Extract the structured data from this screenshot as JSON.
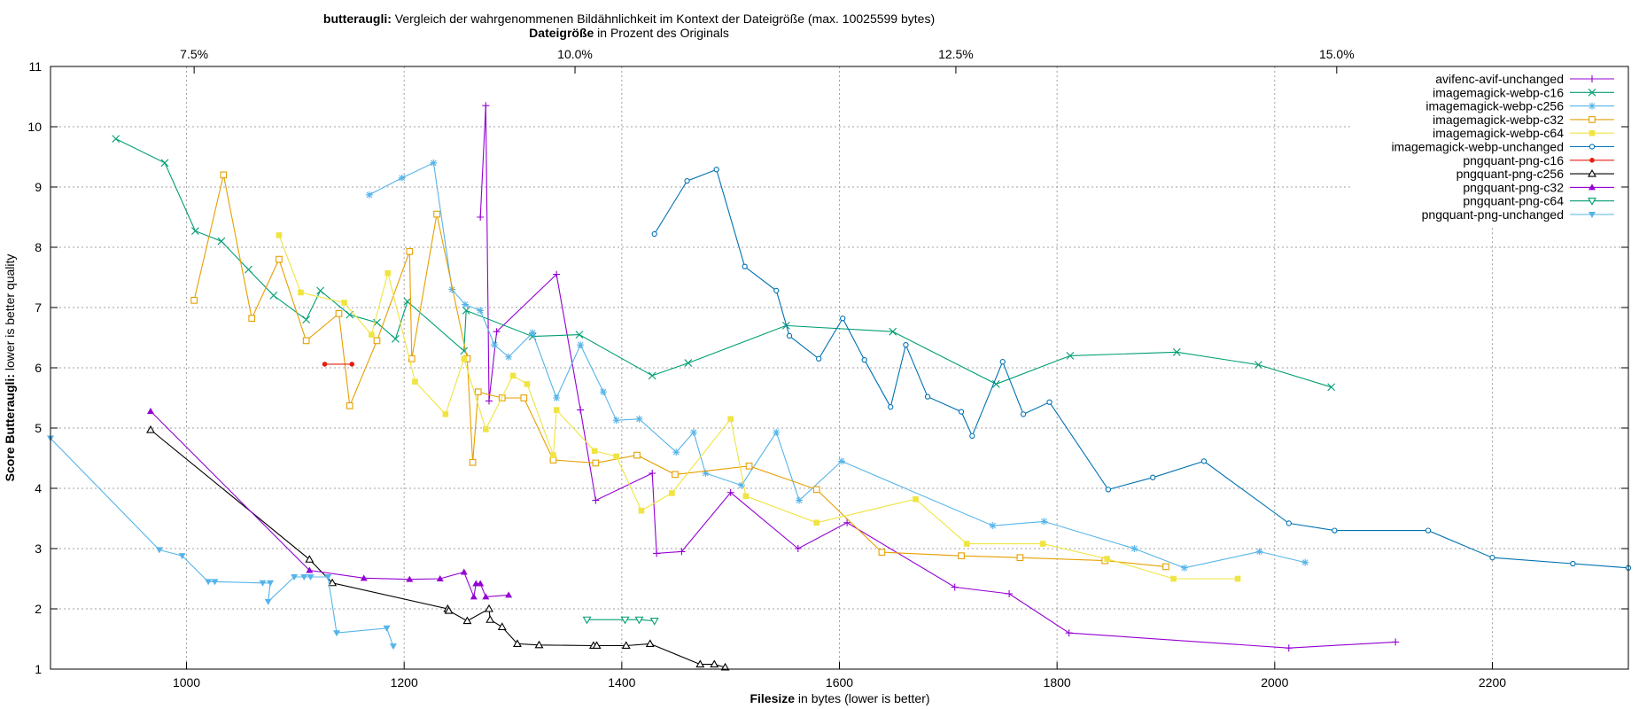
{
  "chart_data": {
    "type": "line",
    "title": {
      "bold": "butteraugli:",
      "rest": " Vergleich der wahrgenommenen Bildähnlichkeit im Kontext der Dateigröße (max. 10025599 bytes)"
    },
    "top_axis_title": {
      "bold": "Dateigröße",
      "rest": " in Prozent des Originals"
    },
    "xlabel": {
      "bold": "Filesize",
      "rest": " in bytes (lower is better)"
    },
    "ylabel": {
      "bold": "Score Butteraugli:",
      "rest": " lower is better quality"
    },
    "xlim": [
      875,
      2325
    ],
    "ylim": [
      1,
      11
    ],
    "x_ticks": [
      1000,
      1200,
      1400,
      1600,
      1800,
      2000,
      2200
    ],
    "y_ticks": [
      1,
      2,
      3,
      4,
      5,
      6,
      7,
      8,
      9,
      10,
      11
    ],
    "top_ticks": [
      {
        "x": 1007,
        "label": "7.5%"
      },
      {
        "x": 1357,
        "label": "10.0%"
      },
      {
        "x": 1707,
        "label": "12.5%"
      },
      {
        "x": 2057,
        "label": "15.0%"
      }
    ],
    "grid": true,
    "legend_position": "top-right",
    "series": [
      {
        "name": "avifenc-avif-unchanged",
        "color": "#9400d3",
        "marker": "plus",
        "points": [
          [
            1270,
            8.5
          ],
          [
            1275,
            10.35
          ],
          [
            1278,
            5.45
          ],
          [
            1285,
            6.6
          ],
          [
            1340,
            7.55
          ],
          [
            1362,
            5.3
          ],
          [
            1376,
            3.8
          ],
          [
            1428,
            4.25
          ],
          [
            1432,
            2.92
          ],
          [
            1455,
            2.95
          ],
          [
            1500,
            3.93
          ],
          [
            1562,
            3.0
          ],
          [
            1607,
            3.43
          ],
          [
            1706,
            2.36
          ],
          [
            1756,
            2.25
          ],
          [
            1811,
            1.6
          ],
          [
            2013,
            1.35
          ],
          [
            2111,
            1.45
          ]
        ]
      },
      {
        "name": "imagemagick-webp-c16",
        "color": "#009e73",
        "marker": "x",
        "points": [
          [
            935,
            9.8
          ],
          [
            980,
            9.4
          ],
          [
            1008,
            8.27
          ],
          [
            1032,
            8.1
          ],
          [
            1057,
            7.63
          ],
          [
            1080,
            7.2
          ],
          [
            1110,
            6.8
          ],
          [
            1123,
            7.28
          ],
          [
            1150,
            6.88
          ],
          [
            1175,
            6.75
          ],
          [
            1192,
            6.48
          ],
          [
            1203,
            7.1
          ],
          [
            1255,
            6.28
          ],
          [
            1257,
            6.95
          ],
          [
            1318,
            6.52
          ],
          [
            1361,
            6.55
          ],
          [
            1428,
            5.87
          ],
          [
            1461,
            6.08
          ],
          [
            1551,
            6.7
          ],
          [
            1649,
            6.6
          ],
          [
            1744,
            5.73
          ],
          [
            1812,
            6.2
          ],
          [
            1910,
            6.26
          ],
          [
            1985,
            6.05
          ],
          [
            2052,
            5.68
          ]
        ]
      },
      {
        "name": "imagemagick-webp-c256",
        "color": "#56b4e9",
        "marker": "star",
        "points": [
          [
            1168,
            8.87
          ],
          [
            1198,
            9.15
          ],
          [
            1227,
            9.4
          ],
          [
            1244,
            7.3
          ],
          [
            1256,
            7.05
          ],
          [
            1270,
            6.95
          ],
          [
            1283,
            6.38
          ],
          [
            1296,
            6.18
          ],
          [
            1318,
            6.58
          ],
          [
            1340,
            5.5
          ],
          [
            1362,
            6.38
          ],
          [
            1383,
            5.6
          ],
          [
            1395,
            5.13
          ],
          [
            1416,
            5.15
          ],
          [
            1450,
            4.6
          ],
          [
            1466,
            4.93
          ],
          [
            1477,
            4.25
          ],
          [
            1510,
            4.05
          ],
          [
            1542,
            4.93
          ],
          [
            1563,
            3.8
          ],
          [
            1602,
            4.45
          ],
          [
            1741,
            3.38
          ],
          [
            1788,
            3.45
          ],
          [
            1871,
            3.0
          ],
          [
            1917,
            2.68
          ],
          [
            1986,
            2.95
          ],
          [
            2028,
            2.77
          ]
        ]
      },
      {
        "name": "imagemagick-webp-c32",
        "color": "#e69f00",
        "marker": "square-open",
        "points": [
          [
            1007,
            7.12
          ],
          [
            1034,
            9.2
          ],
          [
            1060,
            6.82
          ],
          [
            1085,
            7.8
          ],
          [
            1110,
            6.45
          ],
          [
            1140,
            6.9
          ],
          [
            1150,
            5.37
          ],
          [
            1175,
            6.45
          ],
          [
            1205,
            7.93
          ],
          [
            1207,
            6.15
          ],
          [
            1230,
            8.55
          ],
          [
            1258,
            6.15
          ],
          [
            1263,
            4.43
          ],
          [
            1268,
            5.6
          ],
          [
            1290,
            5.5
          ],
          [
            1310,
            5.5
          ],
          [
            1337,
            4.47
          ],
          [
            1376,
            4.42
          ],
          [
            1414,
            4.55
          ],
          [
            1449,
            4.23
          ],
          [
            1517,
            4.37
          ],
          [
            1579,
            3.98
          ],
          [
            1639,
            2.94
          ],
          [
            1712,
            2.88
          ],
          [
            1766,
            2.85
          ],
          [
            1844,
            2.8
          ],
          [
            1900,
            2.7
          ]
        ]
      },
      {
        "name": "imagemagick-webp-c64",
        "color": "#f0e442",
        "marker": "square-solid",
        "points": [
          [
            1085,
            8.2
          ],
          [
            1105,
            7.25
          ],
          [
            1145,
            7.08
          ],
          [
            1170,
            6.55
          ],
          [
            1185,
            7.57
          ],
          [
            1210,
            5.77
          ],
          [
            1238,
            5.23
          ],
          [
            1255,
            6.15
          ],
          [
            1275,
            4.98
          ],
          [
            1300,
            5.87
          ],
          [
            1313,
            5.73
          ],
          [
            1337,
            4.55
          ],
          [
            1340,
            5.3
          ],
          [
            1375,
            4.62
          ],
          [
            1395,
            4.53
          ],
          [
            1418,
            3.63
          ],
          [
            1446,
            3.92
          ],
          [
            1500,
            5.15
          ],
          [
            1514,
            3.87
          ],
          [
            1579,
            3.43
          ],
          [
            1670,
            3.82
          ],
          [
            1717,
            3.08
          ],
          [
            1787,
            3.08
          ],
          [
            1846,
            2.83
          ],
          [
            1907,
            2.5
          ],
          [
            1966,
            2.5
          ]
        ]
      },
      {
        "name": "imagemagick-webp-unchanged",
        "color": "#0072b2",
        "marker": "circle",
        "points": [
          [
            1430,
            8.22
          ],
          [
            1460,
            9.1
          ],
          [
            1487,
            9.29
          ],
          [
            1513,
            7.68
          ],
          [
            1542,
            7.28
          ],
          [
            1554,
            6.53
          ],
          [
            1581,
            6.15
          ],
          [
            1603,
            6.82
          ],
          [
            1623,
            6.13
          ],
          [
            1647,
            5.35
          ],
          [
            1661,
            6.38
          ],
          [
            1681,
            5.52
          ],
          [
            1712,
            5.27
          ],
          [
            1722,
            4.87
          ],
          [
            1750,
            6.1
          ],
          [
            1769,
            5.23
          ],
          [
            1793,
            5.43
          ],
          [
            1847,
            3.98
          ],
          [
            1888,
            4.18
          ],
          [
            1935,
            4.45
          ],
          [
            2013,
            3.42
          ],
          [
            2055,
            3.3
          ],
          [
            2141,
            3.3
          ],
          [
            2200,
            2.85
          ],
          [
            2274,
            2.75
          ],
          [
            2325,
            2.68
          ]
        ]
      },
      {
        "name": "pngquant-png-c16",
        "color": "#e51e10",
        "marker": "circle-solid",
        "points": [
          [
            1127,
            6.06
          ],
          [
            1152,
            6.06
          ]
        ]
      },
      {
        "name": "pngquant-png-c256",
        "color": "#000000",
        "marker": "triangle-open",
        "points": [
          [
            967,
            4.97
          ],
          [
            1113,
            2.82
          ],
          [
            1134,
            2.43
          ],
          [
            1240,
            2.0
          ],
          [
            1241,
            1.97
          ],
          [
            1258,
            1.8
          ],
          [
            1278,
            2.0
          ],
          [
            1279,
            1.82
          ],
          [
            1290,
            1.7
          ],
          [
            1304,
            1.42
          ],
          [
            1324,
            1.4
          ],
          [
            1374,
            1.39
          ],
          [
            1377,
            1.39
          ],
          [
            1404,
            1.39
          ],
          [
            1426,
            1.42
          ],
          [
            1472,
            1.08
          ],
          [
            1485,
            1.08
          ],
          [
            1495,
            1.03
          ]
        ]
      },
      {
        "name": "pngquant-png-c32",
        "color": "#9400d3",
        "marker": "triangle-solid",
        "points": [
          [
            967,
            5.28
          ],
          [
            1113,
            2.64
          ],
          [
            1163,
            2.51
          ],
          [
            1205,
            2.49
          ],
          [
            1233,
            2.5
          ],
          [
            1255,
            2.61
          ],
          [
            1264,
            2.2
          ],
          [
            1266,
            2.42
          ],
          [
            1270,
            2.42
          ],
          [
            1275,
            2.2
          ],
          [
            1296,
            2.23
          ]
        ]
      },
      {
        "name": "pngquant-png-c64",
        "color": "#009e73",
        "marker": "triangle-down-open",
        "points": [
          [
            1368,
            1.82
          ],
          [
            1403,
            1.82
          ],
          [
            1416,
            1.82
          ],
          [
            1430,
            1.8
          ]
        ]
      },
      {
        "name": "pngquant-png-unchanged",
        "color": "#56b4e9",
        "marker": "triangle-down-solid",
        "points": [
          [
            875,
            4.83
          ],
          [
            975,
            2.98
          ],
          [
            996,
            2.88
          ],
          [
            1020,
            2.45
          ],
          [
            1026,
            2.45
          ],
          [
            1070,
            2.43
          ],
          [
            1077,
            2.43
          ],
          [
            1075,
            2.12
          ],
          [
            1099,
            2.53
          ],
          [
            1108,
            2.53
          ],
          [
            1114,
            2.53
          ],
          [
            1130,
            2.53
          ],
          [
            1138,
            1.6
          ],
          [
            1184,
            1.68
          ],
          [
            1190,
            1.38
          ]
        ]
      }
    ]
  }
}
